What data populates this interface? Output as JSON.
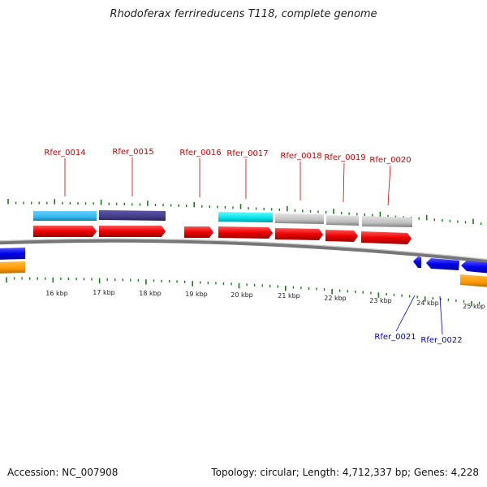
{
  "title": "Rhodoferax ferrireducens T118, complete genome",
  "footer": {
    "accession": "Accession: NC_007908",
    "topology": "Topology: circular; Length: 4,712,337 bp; Genes: 4,228"
  },
  "axis": {
    "ticks": [
      "16 kbp",
      "17 kbp",
      "18 kbp",
      "19 kbp",
      "20 kbp",
      "21 kbp",
      "22 kbp",
      "23 kbp",
      "24 kbp",
      "25 kbp"
    ]
  },
  "genes_forward": [
    "Rfer_0014",
    "Rfer_0015",
    "Rfer_0016",
    "Rfer_0017",
    "Rfer_0018",
    "Rfer_0019",
    "Rfer_0020"
  ],
  "genes_reverse": [
    "Rfer_0021",
    "Rfer_0022"
  ],
  "colors": {
    "cds_forward": "#ee0000",
    "cds_reverse": "#0000ee",
    "tick": "#1a7a1a",
    "backbone": "#888888",
    "cog_light_blue": "#33bbee",
    "cog_dark": "#443e88",
    "cog_cyan": "#00e0e8",
    "cog_grey": "#c0c0c0",
    "cog_orange": "#ff9900",
    "label_forward": "#cc0000",
    "label_reverse": "#0000cc"
  }
}
